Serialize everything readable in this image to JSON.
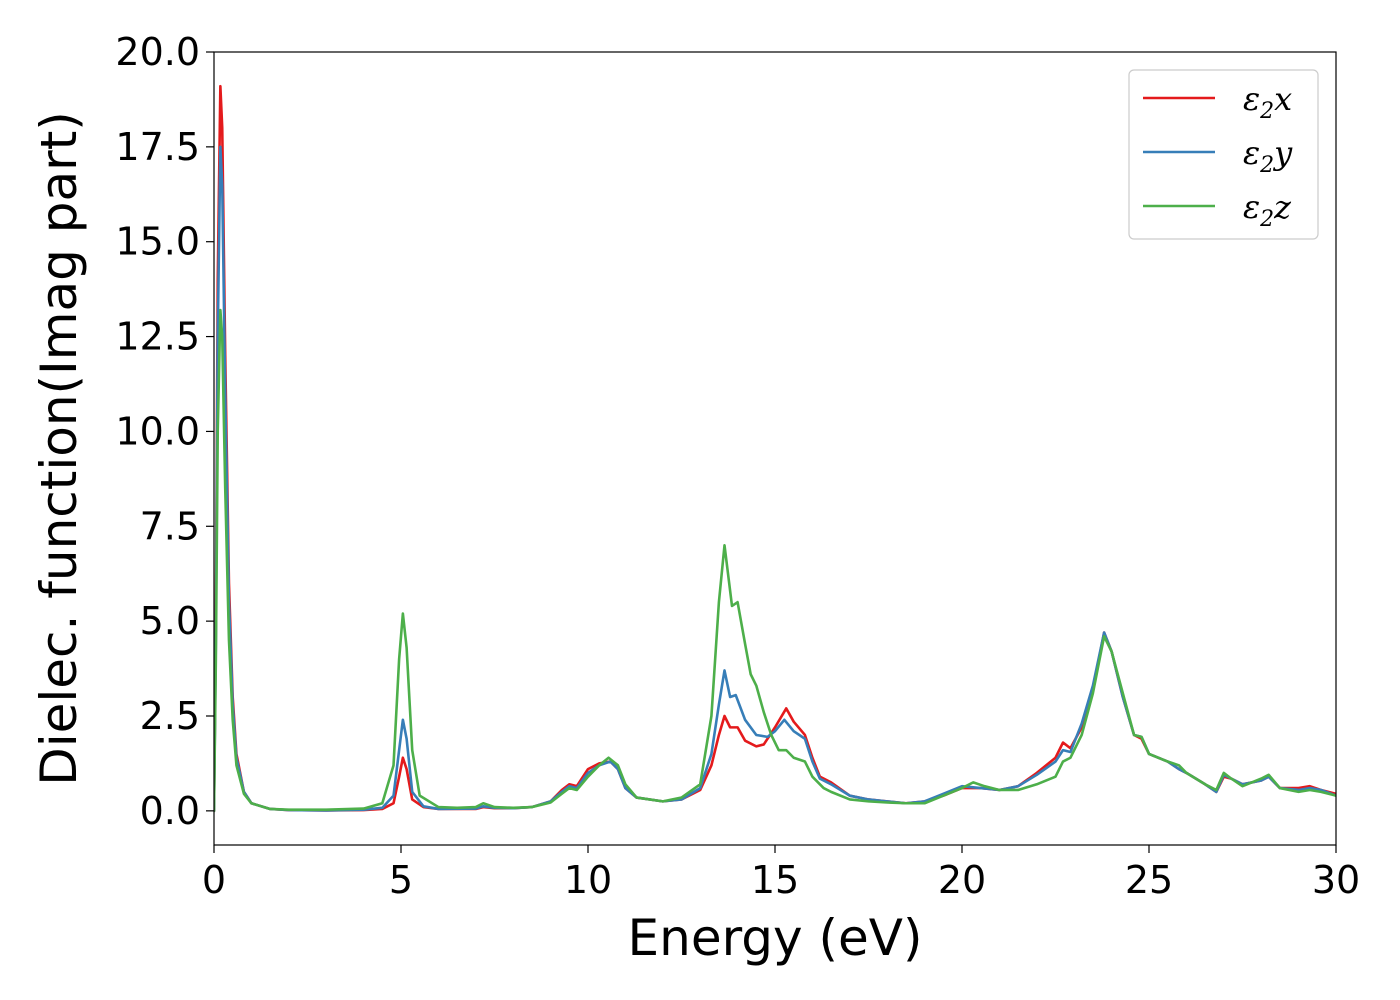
{
  "chart_data": {
    "type": "line",
    "title": "",
    "xlabel": "Energy (eV)",
    "ylabel": "Dielec. function(Imag part)",
    "xlim": [
      0,
      30
    ],
    "ylim": [
      -0.9,
      20.0
    ],
    "x_ticks": [
      0,
      5,
      10,
      15,
      20,
      25,
      30
    ],
    "x_tick_labels": [
      "0",
      "5",
      "10",
      "15",
      "20",
      "25",
      "30"
    ],
    "y_ticks": [
      0.0,
      2.5,
      5.0,
      7.5,
      10.0,
      12.5,
      15.0,
      17.5,
      20.0
    ],
    "y_tick_labels": [
      "0.0",
      "2.5",
      "5.0",
      "7.5",
      "10.0",
      "12.5",
      "15.0",
      "17.5",
      "20.0"
    ],
    "grid": false,
    "legend_position": "top-right",
    "series": [
      {
        "name_parts": [
          "ε",
          "2",
          "x"
        ],
        "color": "#e41a1c",
        "points": [
          [
            0,
            0
          ],
          [
            0.05,
            5.0
          ],
          [
            0.1,
            14.0
          ],
          [
            0.17,
            19.1
          ],
          [
            0.22,
            18.0
          ],
          [
            0.3,
            12.0
          ],
          [
            0.4,
            6.0
          ],
          [
            0.5,
            3.0
          ],
          [
            0.6,
            1.5
          ],
          [
            0.8,
            0.5
          ],
          [
            1.0,
            0.2
          ],
          [
            1.5,
            0.05
          ],
          [
            2.0,
            0.02
          ],
          [
            3.0,
            0.01
          ],
          [
            4.0,
            0.02
          ],
          [
            4.5,
            0.05
          ],
          [
            4.8,
            0.2
          ],
          [
            4.95,
            0.9
          ],
          [
            5.05,
            1.4
          ],
          [
            5.15,
            1.1
          ],
          [
            5.3,
            0.3
          ],
          [
            5.6,
            0.1
          ],
          [
            6.0,
            0.05
          ],
          [
            7.0,
            0.05
          ],
          [
            7.2,
            0.1
          ],
          [
            7.5,
            0.07
          ],
          [
            8.0,
            0.07
          ],
          [
            8.5,
            0.1
          ],
          [
            9.0,
            0.25
          ],
          [
            9.3,
            0.55
          ],
          [
            9.5,
            0.7
          ],
          [
            9.7,
            0.65
          ],
          [
            10.0,
            1.1
          ],
          [
            10.3,
            1.25
          ],
          [
            10.6,
            1.3
          ],
          [
            10.8,
            1.1
          ],
          [
            11.0,
            0.6
          ],
          [
            11.3,
            0.35
          ],
          [
            12.0,
            0.25
          ],
          [
            12.5,
            0.3
          ],
          [
            13.0,
            0.55
          ],
          [
            13.3,
            1.2
          ],
          [
            13.5,
            2.0
          ],
          [
            13.65,
            2.5
          ],
          [
            13.8,
            2.2
          ],
          [
            14.0,
            2.2
          ],
          [
            14.2,
            1.85
          ],
          [
            14.5,
            1.7
          ],
          [
            14.7,
            1.75
          ],
          [
            15.0,
            2.2
          ],
          [
            15.3,
            2.7
          ],
          [
            15.5,
            2.35
          ],
          [
            15.8,
            2.0
          ],
          [
            16.0,
            1.4
          ],
          [
            16.2,
            0.9
          ],
          [
            16.5,
            0.75
          ],
          [
            17.0,
            0.4
          ],
          [
            17.5,
            0.3
          ],
          [
            18.0,
            0.25
          ],
          [
            18.5,
            0.2
          ],
          [
            19.0,
            0.25
          ],
          [
            19.5,
            0.4
          ],
          [
            20.0,
            0.6
          ],
          [
            20.5,
            0.6
          ],
          [
            21.0,
            0.55
          ],
          [
            21.5,
            0.65
          ],
          [
            22.0,
            1.0
          ],
          [
            22.5,
            1.4
          ],
          [
            22.7,
            1.8
          ],
          [
            22.9,
            1.65
          ],
          [
            23.2,
            2.2
          ],
          [
            23.5,
            3.2
          ],
          [
            23.8,
            4.7
          ],
          [
            24.0,
            4.2
          ],
          [
            24.3,
            3.0
          ],
          [
            24.6,
            2.0
          ],
          [
            24.8,
            1.9
          ],
          [
            25.0,
            1.5
          ],
          [
            25.5,
            1.3
          ],
          [
            25.8,
            1.1
          ],
          [
            26.0,
            1.0
          ],
          [
            26.5,
            0.7
          ],
          [
            26.8,
            0.5
          ],
          [
            27.0,
            0.9
          ],
          [
            27.2,
            0.85
          ],
          [
            27.5,
            0.7
          ],
          [
            28.0,
            0.8
          ],
          [
            28.2,
            0.9
          ],
          [
            28.5,
            0.6
          ],
          [
            29.0,
            0.6
          ],
          [
            29.3,
            0.65
          ],
          [
            29.6,
            0.55
          ],
          [
            30.0,
            0.45
          ]
        ]
      },
      {
        "name_parts": [
          "ε",
          "2",
          "y"
        ],
        "color": "#377eb8",
        "points": [
          [
            0,
            0
          ],
          [
            0.05,
            4.5
          ],
          [
            0.1,
            12.5
          ],
          [
            0.17,
            17.5
          ],
          [
            0.22,
            16.5
          ],
          [
            0.3,
            11.0
          ],
          [
            0.4,
            5.5
          ],
          [
            0.5,
            2.8
          ],
          [
            0.6,
            1.4
          ],
          [
            0.8,
            0.5
          ],
          [
            1.0,
            0.2
          ],
          [
            1.5,
            0.05
          ],
          [
            2.0,
            0.02
          ],
          [
            3.0,
            0.01
          ],
          [
            4.0,
            0.03
          ],
          [
            4.5,
            0.08
          ],
          [
            4.8,
            0.4
          ],
          [
            4.95,
            1.6
          ],
          [
            5.05,
            2.4
          ],
          [
            5.15,
            1.9
          ],
          [
            5.3,
            0.5
          ],
          [
            5.6,
            0.12
          ],
          [
            6.0,
            0.05
          ],
          [
            7.0,
            0.06
          ],
          [
            7.2,
            0.12
          ],
          [
            7.5,
            0.08
          ],
          [
            8.0,
            0.07
          ],
          [
            8.5,
            0.1
          ],
          [
            9.0,
            0.25
          ],
          [
            9.3,
            0.5
          ],
          [
            9.5,
            0.65
          ],
          [
            9.7,
            0.6
          ],
          [
            10.0,
            1.0
          ],
          [
            10.3,
            1.2
          ],
          [
            10.6,
            1.3
          ],
          [
            10.8,
            1.1
          ],
          [
            11.0,
            0.6
          ],
          [
            11.3,
            0.35
          ],
          [
            12.0,
            0.25
          ],
          [
            12.5,
            0.3
          ],
          [
            13.0,
            0.6
          ],
          [
            13.3,
            1.5
          ],
          [
            13.5,
            2.8
          ],
          [
            13.65,
            3.7
          ],
          [
            13.8,
            3.0
          ],
          [
            13.95,
            3.05
          ],
          [
            14.2,
            2.4
          ],
          [
            14.5,
            2.0
          ],
          [
            14.8,
            1.95
          ],
          [
            15.0,
            2.1
          ],
          [
            15.25,
            2.4
          ],
          [
            15.5,
            2.1
          ],
          [
            15.8,
            1.9
          ],
          [
            16.0,
            1.3
          ],
          [
            16.2,
            0.85
          ],
          [
            16.5,
            0.7
          ],
          [
            17.0,
            0.4
          ],
          [
            17.5,
            0.3
          ],
          [
            18.0,
            0.25
          ],
          [
            18.5,
            0.2
          ],
          [
            19.0,
            0.25
          ],
          [
            19.5,
            0.45
          ],
          [
            20.0,
            0.65
          ],
          [
            20.5,
            0.6
          ],
          [
            21.0,
            0.55
          ],
          [
            21.5,
            0.65
          ],
          [
            22.0,
            0.95
          ],
          [
            22.5,
            1.3
          ],
          [
            22.7,
            1.6
          ],
          [
            22.9,
            1.55
          ],
          [
            23.2,
            2.3
          ],
          [
            23.5,
            3.3
          ],
          [
            23.8,
            4.7
          ],
          [
            24.0,
            4.2
          ],
          [
            24.3,
            3.0
          ],
          [
            24.6,
            2.0
          ],
          [
            24.8,
            1.95
          ],
          [
            25.0,
            1.5
          ],
          [
            25.5,
            1.3
          ],
          [
            25.8,
            1.1
          ],
          [
            26.0,
            1.0
          ],
          [
            26.5,
            0.7
          ],
          [
            26.8,
            0.5
          ],
          [
            27.0,
            0.95
          ],
          [
            27.2,
            0.85
          ],
          [
            27.5,
            0.7
          ],
          [
            28.0,
            0.8
          ],
          [
            28.2,
            0.9
          ],
          [
            28.5,
            0.6
          ],
          [
            29.0,
            0.55
          ],
          [
            29.3,
            0.6
          ],
          [
            29.6,
            0.55
          ],
          [
            30.0,
            0.4
          ]
        ]
      },
      {
        "name_parts": [
          "ε",
          "2",
          "z"
        ],
        "color": "#4daf4a",
        "points": [
          [
            0,
            0
          ],
          [
            0.05,
            4.0
          ],
          [
            0.1,
            10.0
          ],
          [
            0.17,
            13.2
          ],
          [
            0.22,
            12.5
          ],
          [
            0.3,
            8.5
          ],
          [
            0.4,
            4.5
          ],
          [
            0.5,
            2.4
          ],
          [
            0.6,
            1.2
          ],
          [
            0.8,
            0.45
          ],
          [
            1.0,
            0.2
          ],
          [
            1.5,
            0.05
          ],
          [
            2.0,
            0.03
          ],
          [
            3.0,
            0.03
          ],
          [
            4.0,
            0.06
          ],
          [
            4.5,
            0.2
          ],
          [
            4.8,
            1.2
          ],
          [
            4.95,
            4.0
          ],
          [
            5.05,
            5.2
          ],
          [
            5.15,
            4.3
          ],
          [
            5.3,
            1.6
          ],
          [
            5.5,
            0.4
          ],
          [
            6.0,
            0.1
          ],
          [
            6.5,
            0.08
          ],
          [
            7.0,
            0.1
          ],
          [
            7.2,
            0.2
          ],
          [
            7.5,
            0.1
          ],
          [
            8.0,
            0.08
          ],
          [
            8.5,
            0.1
          ],
          [
            9.0,
            0.22
          ],
          [
            9.3,
            0.45
          ],
          [
            9.5,
            0.6
          ],
          [
            9.7,
            0.55
          ],
          [
            10.0,
            0.9
          ],
          [
            10.3,
            1.2
          ],
          [
            10.55,
            1.4
          ],
          [
            10.8,
            1.2
          ],
          [
            11.0,
            0.7
          ],
          [
            11.3,
            0.35
          ],
          [
            12.0,
            0.25
          ],
          [
            12.5,
            0.35
          ],
          [
            13.0,
            0.7
          ],
          [
            13.3,
            2.5
          ],
          [
            13.5,
            5.5
          ],
          [
            13.65,
            7.0
          ],
          [
            13.85,
            5.4
          ],
          [
            14.0,
            5.5
          ],
          [
            14.2,
            4.4
          ],
          [
            14.35,
            3.6
          ],
          [
            14.5,
            3.3
          ],
          [
            14.7,
            2.6
          ],
          [
            14.9,
            2.0
          ],
          [
            15.1,
            1.6
          ],
          [
            15.3,
            1.6
          ],
          [
            15.5,
            1.4
          ],
          [
            15.8,
            1.3
          ],
          [
            16.0,
            0.9
          ],
          [
            16.3,
            0.6
          ],
          [
            16.5,
            0.5
          ],
          [
            17.0,
            0.3
          ],
          [
            17.5,
            0.25
          ],
          [
            18.0,
            0.22
          ],
          [
            18.5,
            0.2
          ],
          [
            19.0,
            0.2
          ],
          [
            19.5,
            0.4
          ],
          [
            20.0,
            0.6
          ],
          [
            20.3,
            0.75
          ],
          [
            20.6,
            0.65
          ],
          [
            21.0,
            0.55
          ],
          [
            21.5,
            0.55
          ],
          [
            22.0,
            0.7
          ],
          [
            22.5,
            0.9
          ],
          [
            22.7,
            1.3
          ],
          [
            22.9,
            1.4
          ],
          [
            23.2,
            2.0
          ],
          [
            23.5,
            3.1
          ],
          [
            23.8,
            4.6
          ],
          [
            24.0,
            4.2
          ],
          [
            24.3,
            3.1
          ],
          [
            24.6,
            2.0
          ],
          [
            24.8,
            1.95
          ],
          [
            25.0,
            1.5
          ],
          [
            25.5,
            1.3
          ],
          [
            25.8,
            1.2
          ],
          [
            26.0,
            1.0
          ],
          [
            26.5,
            0.7
          ],
          [
            26.8,
            0.55
          ],
          [
            27.0,
            1.0
          ],
          [
            27.2,
            0.85
          ],
          [
            27.5,
            0.65
          ],
          [
            28.0,
            0.85
          ],
          [
            28.2,
            0.95
          ],
          [
            28.5,
            0.6
          ],
          [
            29.0,
            0.5
          ],
          [
            29.3,
            0.55
          ],
          [
            29.6,
            0.5
          ],
          [
            30.0,
            0.4
          ]
        ]
      }
    ]
  }
}
